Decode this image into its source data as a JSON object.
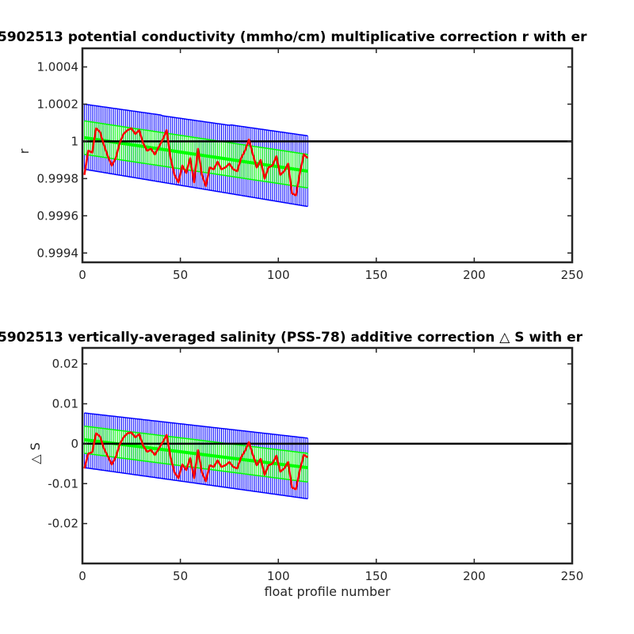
{
  "chart_data": [
    {
      "type": "line",
      "title": "5902513 potential conductivity (mmho/cm) multiplicative correction r with er",
      "xlabel": "",
      "ylabel": "r",
      "xlim": [
        0,
        250
      ],
      "ylim": [
        0.99935,
        1.0005
      ],
      "xticks": [
        0,
        50,
        100,
        150,
        200,
        250
      ],
      "yticks": [
        0.9994,
        0.9996,
        0.9998,
        1,
        1.0002,
        1.0004
      ],
      "ytick_labels": [
        "0.9994",
        "0.9996",
        "0.9998",
        "1",
        "1.0002",
        "1.0004"
      ],
      "grid": false,
      "reference_line": 1,
      "series": [
        {
          "kind": "fit_with_errorbars",
          "color": "#00ff00",
          "x_range": [
            1,
            115
          ],
          "center": [
            1.00002,
            0.99984
          ],
          "half_width": [
            9e-05,
            9e-05
          ]
        },
        {
          "kind": "outer_errorbars",
          "color": "#0000ff",
          "x_range": [
            1,
            115
          ],
          "upper": [
            1.0002,
            1.00003
          ],
          "lower": [
            0.99985,
            0.99965
          ]
        },
        {
          "kind": "data_line",
          "color": "#ff0000",
          "x": [
            1,
            3,
            5,
            7,
            9,
            11,
            13,
            15,
            17,
            19,
            21,
            23,
            25,
            27,
            29,
            31,
            33,
            35,
            37,
            39,
            41,
            43,
            45,
            47,
            49,
            51,
            53,
            55,
            57,
            59,
            61,
            63,
            65,
            67,
            69,
            71,
            73,
            75,
            77,
            79,
            81,
            83,
            85,
            87,
            89,
            91,
            93,
            95,
            97,
            99,
            101,
            103,
            105,
            107,
            109,
            111,
            113,
            115
          ],
          "y": [
            0.99982,
            0.99995,
            0.99994,
            1.00007,
            1.00005,
            0.99998,
            0.99992,
            0.99987,
            0.99991,
            0.99999,
            1.00004,
            1.00006,
            1.00007,
            1.00004,
            1.00006,
            0.99999,
            0.99995,
            0.99996,
            0.99993,
            0.99997,
            1.00001,
            1.00006,
            0.99991,
            0.99982,
            0.99978,
            0.99987,
            0.99983,
            0.99991,
            0.99978,
            0.99996,
            0.99982,
            0.99976,
            0.99986,
            0.99985,
            0.99989,
            0.99985,
            0.99986,
            0.99988,
            0.99985,
            0.99984,
            0.99991,
            0.99995,
            1.00001,
            0.99993,
            0.99986,
            0.9999,
            0.9998,
            0.99986,
            0.99987,
            0.99992,
            0.99982,
            0.99984,
            0.99988,
            0.99972,
            0.99971,
            0.99983,
            0.99993,
            0.99991
          ]
        }
      ]
    },
    {
      "type": "line",
      "title": "5902513 vertically-averaged salinity (PSS-78) additive correction △ S with er",
      "xlabel": "float profile number",
      "ylabel": "△ S",
      "xlim": [
        0,
        250
      ],
      "ylim": [
        -0.03,
        0.024
      ],
      "xticks": [
        0,
        50,
        100,
        150,
        200,
        250
      ],
      "yticks": [
        -0.02,
        -0.01,
        0,
        0.01,
        0.02
      ],
      "ytick_labels": [
        "-0.02",
        "-0.01",
        "0",
        "0.01",
        "0.02"
      ],
      "grid": false,
      "reference_line": 0,
      "series": [
        {
          "kind": "fit_with_errorbars",
          "color": "#00ff00",
          "x_range": [
            1,
            115
          ],
          "center": [
            0.001,
            -0.006
          ],
          "half_width": [
            0.0034,
            0.0036
          ]
        },
        {
          "kind": "outer_errorbars",
          "color": "#0000ff",
          "x_range": [
            1,
            115
          ],
          "upper": [
            0.0077,
            0.0014
          ],
          "lower": [
            -0.006,
            -0.0138
          ]
        },
        {
          "kind": "data_line",
          "color": "#ff0000",
          "x": [
            1,
            3,
            5,
            7,
            9,
            11,
            13,
            15,
            17,
            19,
            21,
            23,
            25,
            27,
            29,
            31,
            33,
            35,
            37,
            39,
            41,
            43,
            45,
            47,
            49,
            51,
            53,
            55,
            57,
            59,
            61,
            63,
            65,
            67,
            69,
            71,
            73,
            75,
            77,
            79,
            81,
            83,
            85,
            87,
            89,
            91,
            93,
            95,
            97,
            99,
            101,
            103,
            105,
            107,
            109,
            111,
            113,
            115
          ],
          "y": [
            -0.0062,
            -0.0025,
            -0.0021,
            0.0026,
            0.0018,
            -0.0012,
            -0.0032,
            -0.0052,
            -0.0034,
            -0.0002,
            0.0016,
            0.0026,
            0.0028,
            0.0016,
            0.0024,
            -0.0005,
            -0.002,
            -0.0016,
            -0.0028,
            -0.0012,
            0.0004,
            0.0022,
            -0.0034,
            -0.0072,
            -0.0086,
            -0.0052,
            -0.0066,
            -0.0036,
            -0.0086,
            -0.0016,
            -0.0072,
            -0.0094,
            -0.0054,
            -0.0058,
            -0.0042,
            -0.0058,
            -0.0054,
            -0.0046,
            -0.0058,
            -0.0062,
            -0.0034,
            -0.0018,
            0.0004,
            -0.0028,
            -0.0054,
            -0.0038,
            -0.0078,
            -0.0054,
            -0.005,
            -0.003,
            -0.007,
            -0.0062,
            -0.0046,
            -0.011,
            -0.0114,
            -0.0066,
            -0.0028,
            -0.0034
          ]
        }
      ]
    }
  ]
}
